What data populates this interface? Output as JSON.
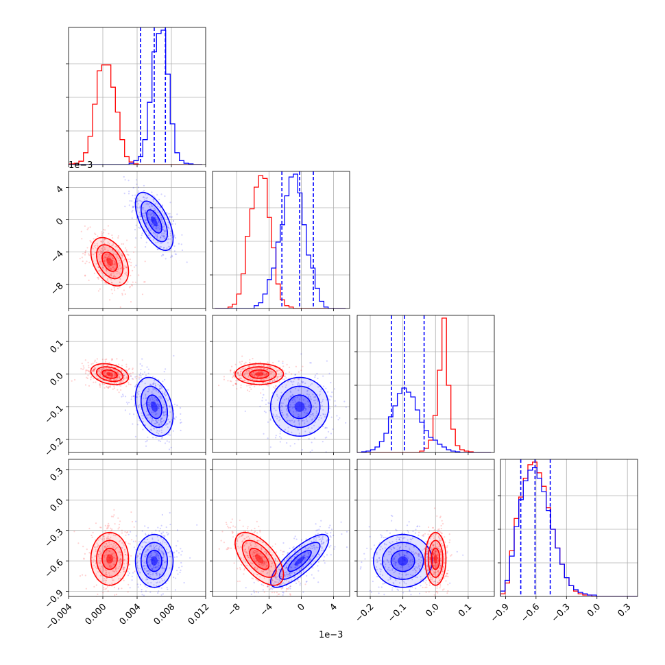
{
  "chart_data": {
    "type": "corner",
    "title": "",
    "parameters": 4,
    "grid": true,
    "colors": {
      "series_a": "#0000ff",
      "series_b": "#ff0000"
    },
    "series": [
      {
        "name": "",
        "color": "#0000ff"
      },
      {
        "name": "",
        "color": "#ff0000"
      }
    ],
    "axes": [
      {
        "range": [
          -0.004,
          0.012
        ],
        "ticks": [
          -0.004,
          0.0,
          0.004,
          0.008,
          0.012
        ],
        "tick_labels": [
          "−0.004",
          "0.000",
          "0.004",
          "0.008",
          "0.012"
        ],
        "offset_label": ""
      },
      {
        "range": [
          -0.011,
          0.006
        ],
        "ticks": [
          -0.008,
          -0.004,
          0.0,
          0.004
        ],
        "tick_labels": [
          "−8",
          "−4",
          "0",
          "4"
        ],
        "offset_label": "1e−3"
      },
      {
        "range": [
          -0.24,
          0.18
        ],
        "ticks": [
          -0.2,
          -0.1,
          0.0,
          0.1
        ],
        "tick_labels": [
          "−0.2",
          "−0.1",
          "0.0",
          "0.1"
        ],
        "offset_label": ""
      },
      {
        "range": [
          -0.95,
          0.4
        ],
        "ticks": [
          -0.9,
          -0.6,
          -0.3,
          0.0,
          0.3
        ],
        "tick_labels": [
          "−0.9",
          "−0.6",
          "−0.3",
          "0.0",
          "0.3"
        ],
        "offset_label": ""
      }
    ],
    "distributions": [
      {
        "color": "#0000ff",
        "mean": [
          0.006,
          -0.0002,
          -0.1,
          -0.6
        ],
        "sd": [
          0.0011,
          0.0018,
          0.045,
          0.13
        ],
        "corr": {
          "0-1": -0.6,
          "0-2": -0.3,
          "1-2": 0.0,
          "0-3": 0.0,
          "1-3": 0.8,
          "2-3": 0.0
        }
      },
      {
        "color": "#ff0000",
        "mean": [
          0.0008,
          -0.0052,
          0.0,
          -0.58
        ],
        "sd": [
          0.0011,
          0.0015,
          0.016,
          0.13
        ],
        "corr": {
          "0-1": -0.4,
          "0-2": -0.3,
          "1-2": 0.0,
          "0-3": 0.0,
          "1-3": -0.6,
          "2-3": 0.0
        }
      }
    ],
    "quantiles": [
      [
        0.0044,
        0.006,
        0.0073
      ],
      [
        -0.0024,
        -0.0002,
        0.0015
      ],
      [
        -0.135,
        -0.095,
        -0.035
      ],
      [
        -0.75,
        -0.61,
        -0.46
      ]
    ],
    "histograms": [
      {
        "bins": [
          -0.0044,
          0.0116
        ],
        "blue": [
          0,
          0,
          0,
          0,
          0,
          0,
          0,
          0,
          0,
          0,
          0,
          0,
          0,
          0,
          2,
          6,
          12,
          38,
          95,
          172,
          200,
          205,
          138,
          62,
          18,
          6,
          2,
          1,
          0,
          0
        ],
        "red": [
          0,
          1,
          2,
          5,
          18,
          43,
          92,
          143,
          152,
          152,
          118,
          80,
          38,
          12,
          4,
          1,
          0,
          0,
          0,
          0,
          0,
          0,
          0,
          0,
          0,
          0,
          0,
          0,
          0,
          0
        ]
      },
      {
        "bins": [
          -0.0107,
          0.0055
        ],
        "blue": [
          0,
          0,
          0,
          0,
          0,
          0,
          0,
          0,
          0,
          2,
          4,
          10,
          20,
          28,
          46,
          58,
          78,
          91,
          93,
          80,
          58,
          37,
          28,
          14,
          5,
          1,
          0,
          0,
          0,
          0
        ],
        "red": [
          0,
          0,
          0,
          1,
          3,
          10,
          24,
          50,
          69,
          84,
          92,
          90,
          63,
          42,
          17,
          6,
          2,
          1,
          0,
          0,
          0,
          0,
          0,
          0,
          0,
          0,
          0,
          0,
          0,
          0
        ]
      },
      {
        "bins": [
          -0.24,
          0.17
        ],
        "blue": [
          0,
          1,
          2,
          4,
          8,
          16,
          28,
          52,
          68,
          86,
          94,
          88,
          81,
          62,
          44,
          32,
          22,
          18,
          12,
          8,
          4,
          2,
          1,
          0,
          0,
          0,
          0,
          0,
          0,
          0
        ],
        "red": [
          0,
          0,
          0,
          0,
          0,
          0,
          0,
          0,
          0,
          0,
          0,
          0,
          0,
          0,
          2,
          6,
          18,
          54,
          120,
          196,
          98,
          34,
          10,
          4,
          2,
          1,
          0,
          0,
          0,
          0
        ]
      },
      {
        "bins": [
          -0.95,
          0.4
        ],
        "blue": [
          4,
          12,
          30,
          52,
          72,
          86,
          94,
          96,
          88,
          78,
          64,
          50,
          36,
          24,
          14,
          8,
          5,
          3,
          2,
          1,
          1,
          0,
          0,
          0,
          0,
          0,
          0,
          0,
          0,
          0
        ],
        "red": [
          2,
          10,
          34,
          58,
          74,
          88,
          98,
          100,
          92,
          82,
          66,
          50,
          36,
          24,
          14,
          8,
          4,
          2,
          1,
          1,
          0,
          0,
          0,
          0,
          0,
          0,
          0,
          0,
          0,
          0
        ]
      }
    ]
  }
}
